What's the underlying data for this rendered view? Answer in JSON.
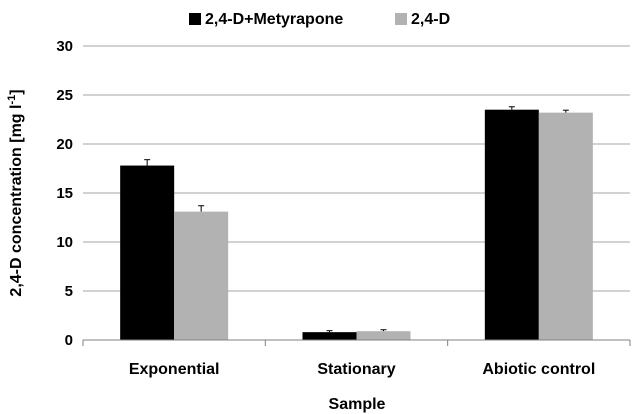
{
  "chart_data": {
    "type": "bar",
    "title": "",
    "categories": [
      "Exponential",
      "Stationary",
      "Abiotic control"
    ],
    "series": [
      {
        "name": "2,4-D+Metyrapone",
        "color": "#000000",
        "values": [
          17.8,
          0.8,
          23.5
        ],
        "errors": [
          0.6,
          0.15,
          0.3
        ]
      },
      {
        "name": "2,4-D",
        "color": "#b2b2b2",
        "values": [
          13.1,
          0.9,
          23.2
        ],
        "errors": [
          0.6,
          0.15,
          0.25
        ]
      }
    ],
    "xlabel": "Sample",
    "ylabel": "2,4-D concentration [mg l",
    "ylabel_superscript": "-1",
    "ylabel_suffix": "]",
    "ylim": [
      0,
      30
    ],
    "yticks": [
      0,
      5,
      10,
      15,
      20,
      25,
      30
    ],
    "grid": "horizontal",
    "legend_position": "top"
  }
}
